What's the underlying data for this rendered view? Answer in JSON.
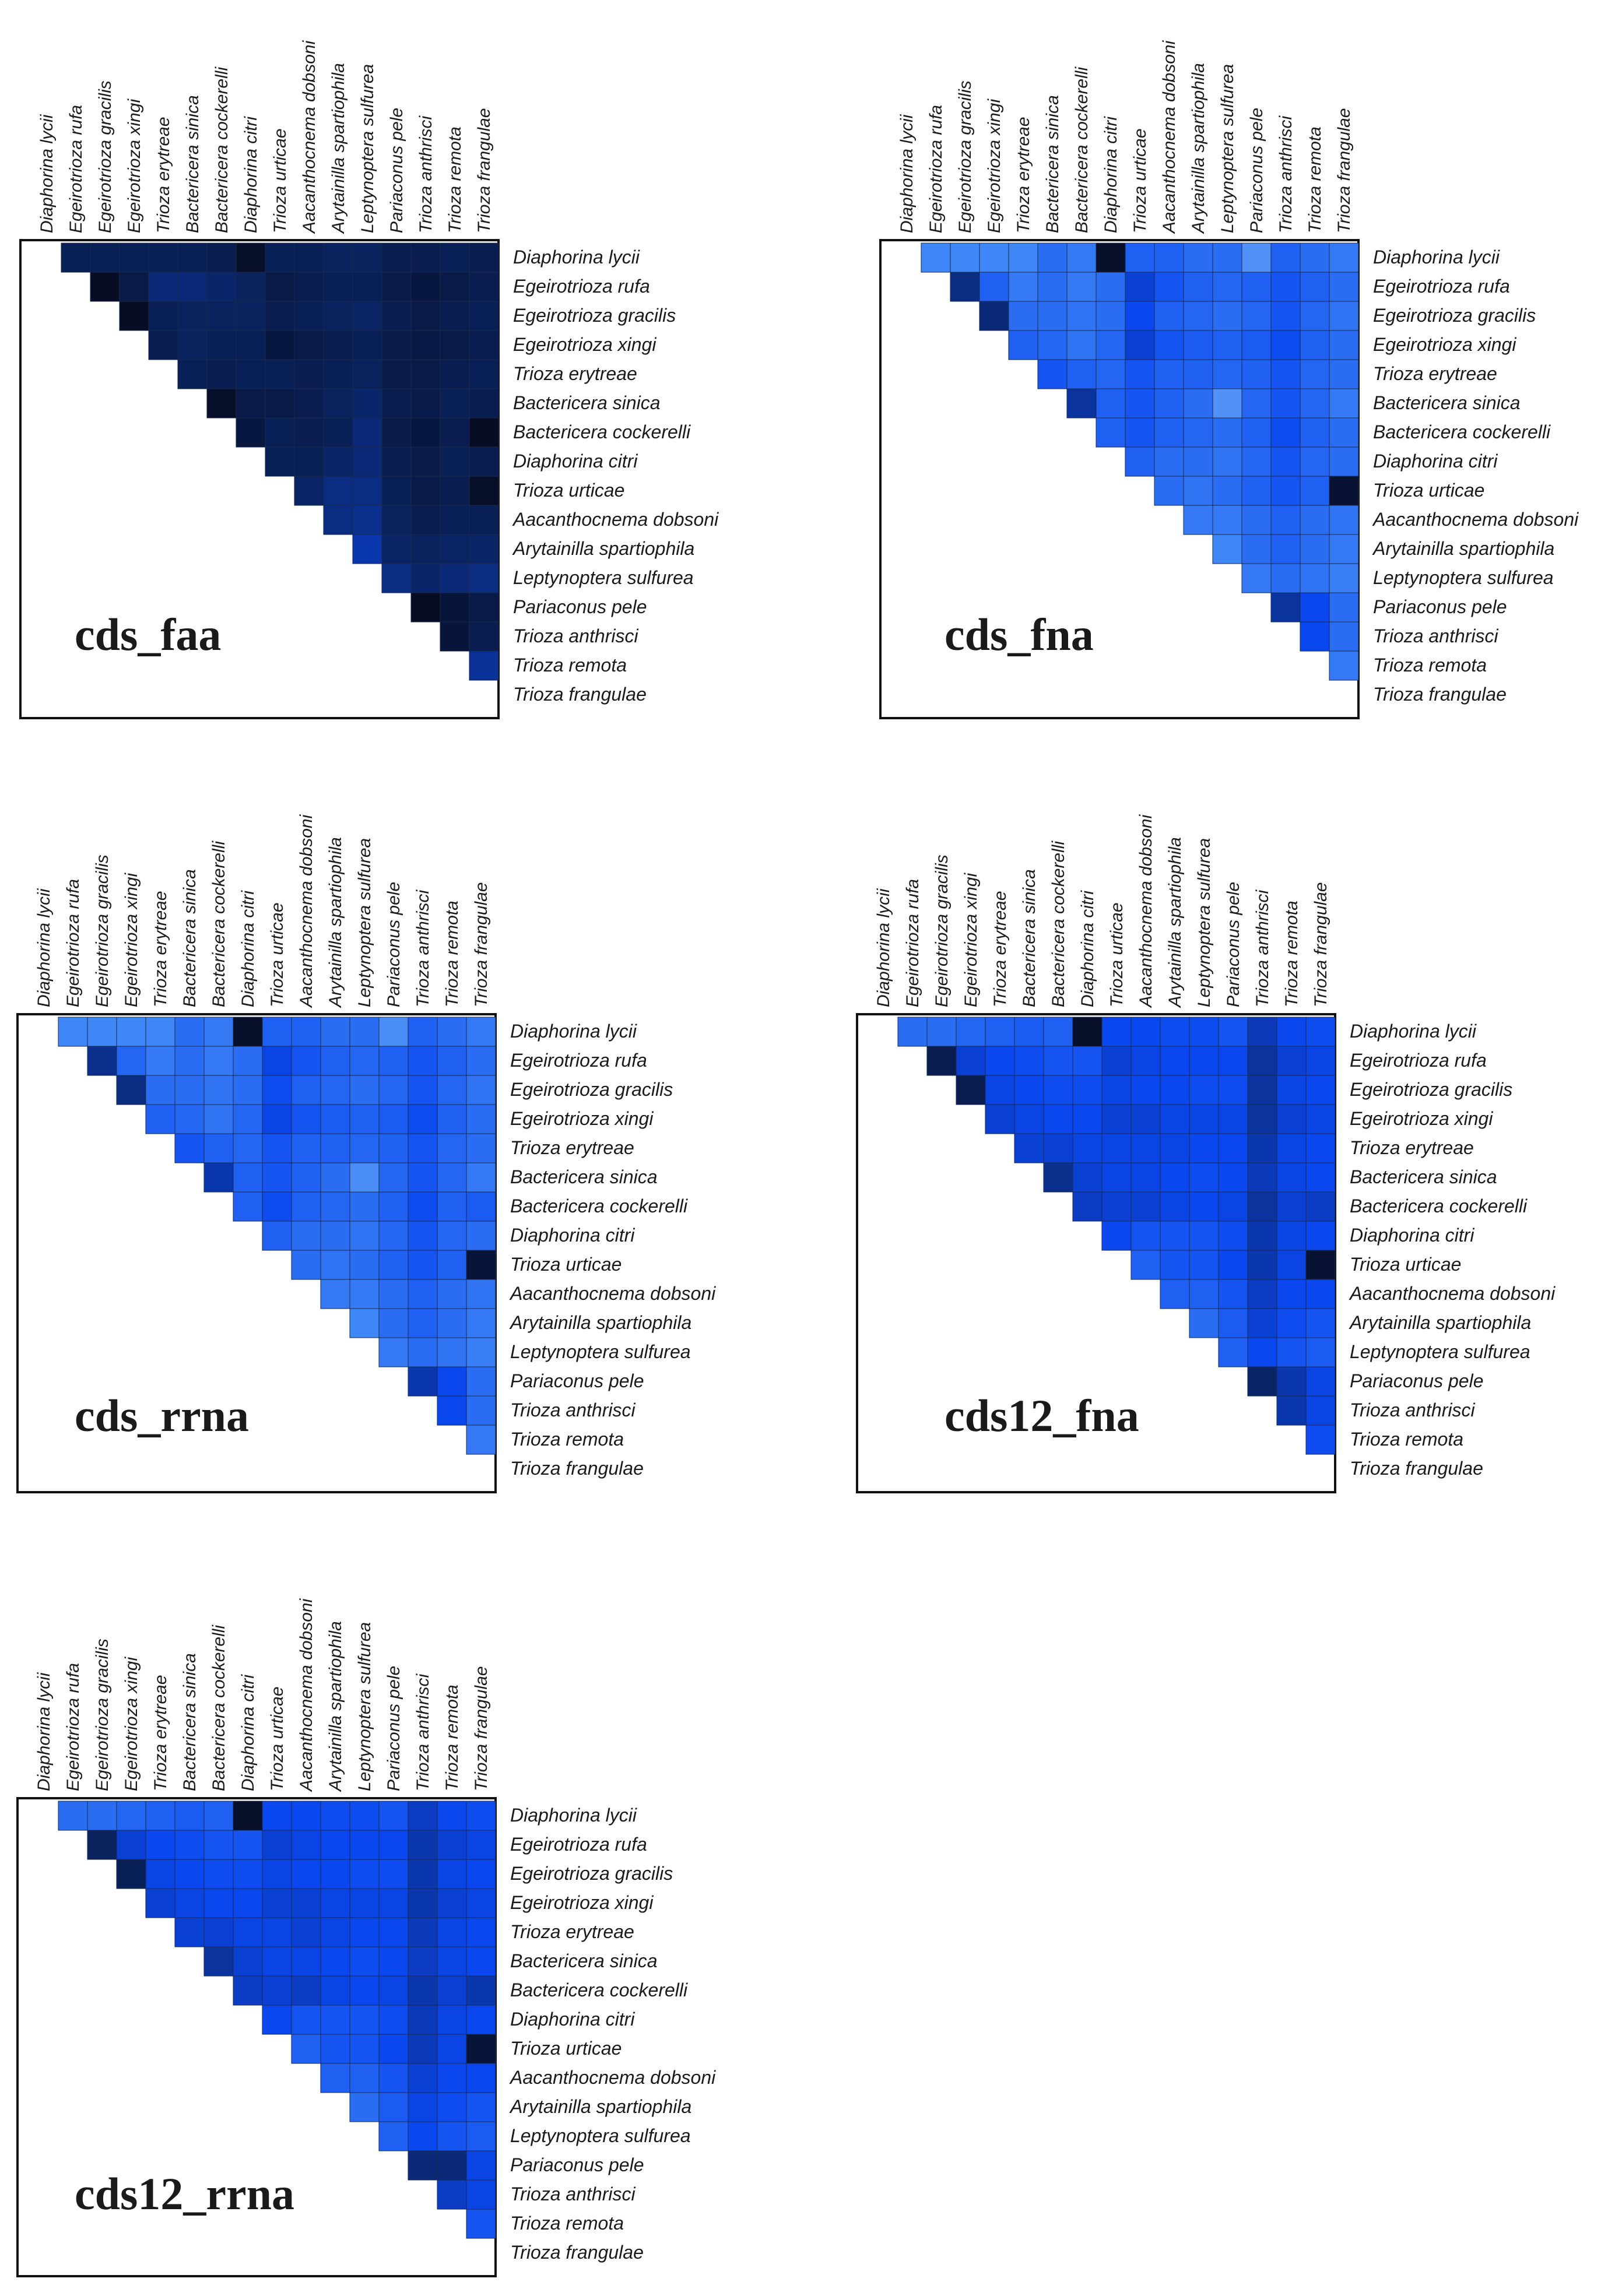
{
  "species": [
    "Diaphorina lycii",
    "Egeirotrioza rufa",
    "Egeirotrioza gracilis",
    "Egeirotrioza xingi",
    "Trioza erytreae",
    "Bactericera  sinica",
    "Bactericera cockerelli",
    "Diaphorina citri",
    "Trioza urticae",
    "Aacanthocnema dobsoni",
    "Arytainilla spartiophila",
    "Leptynoptera sulfurea",
    "Pariaconus pele",
    "Trioza anthrisci",
    "Trioza remota",
    "Trioza frangulae"
  ],
  "chart_data": [
    {
      "type": "heatmap",
      "title": "cds_faa",
      "scale": "0 = lightest blue, 1 = darkest navy",
      "palette": [
        "#9cc0fa",
        "#3f86f6",
        "#0b47ef",
        "#0a2566",
        "#070a1c"
      ],
      "values": [
        [],
        [
          0.8
        ],
        [
          0.8,
          0.97
        ],
        [
          0.8,
          0.85,
          0.97
        ],
        [
          0.8,
          0.72,
          0.8,
          0.82
        ],
        [
          0.8,
          0.72,
          0.78,
          0.78,
          0.8
        ],
        [
          0.82,
          0.74,
          0.78,
          0.8,
          0.82,
          0.95
        ],
        [
          0.95,
          0.78,
          0.78,
          0.8,
          0.8,
          0.85,
          0.88
        ],
        [
          0.8,
          0.85,
          0.82,
          0.88,
          0.8,
          0.85,
          0.8,
          0.8
        ],
        [
          0.8,
          0.82,
          0.8,
          0.85,
          0.82,
          0.82,
          0.82,
          0.8,
          0.75
        ],
        [
          0.78,
          0.8,
          0.78,
          0.82,
          0.8,
          0.78,
          0.8,
          0.75,
          0.7,
          0.7
        ],
        [
          0.78,
          0.8,
          0.76,
          0.8,
          0.78,
          0.74,
          0.72,
          0.72,
          0.7,
          0.68,
          0.62
        ],
        [
          0.82,
          0.85,
          0.82,
          0.85,
          0.84,
          0.82,
          0.85,
          0.82,
          0.8,
          0.78,
          0.76,
          0.7
        ],
        [
          0.82,
          0.88,
          0.85,
          0.86,
          0.85,
          0.84,
          0.88,
          0.85,
          0.85,
          0.82,
          0.78,
          0.74,
          0.98
        ],
        [
          0.8,
          0.85,
          0.82,
          0.85,
          0.82,
          0.8,
          0.82,
          0.8,
          0.82,
          0.8,
          0.76,
          0.72,
          0.9,
          0.9
        ],
        [
          0.82,
          0.82,
          0.8,
          0.82,
          0.8,
          0.82,
          0.98,
          0.82,
          0.96,
          0.8,
          0.75,
          0.7,
          0.85,
          0.82,
          0.66
        ]
      ]
    },
    {
      "type": "heatmap",
      "title": "cds_fna",
      "scale": "0 = lightest blue, 1 = darkest navy",
      "palette": [
        "#9cc0fa",
        "#3f86f6",
        "#0b47ef",
        "#0a2566",
        "#070a1c"
      ],
      "values": [
        [],
        [
          0.25
        ],
        [
          0.25,
          0.7
        ],
        [
          0.25,
          0.4,
          0.72
        ],
        [
          0.25,
          0.3,
          0.35,
          0.4
        ],
        [
          0.35,
          0.35,
          0.35,
          0.38,
          0.45
        ],
        [
          0.3,
          0.3,
          0.32,
          0.32,
          0.4,
          0.65
        ],
        [
          0.95,
          0.35,
          0.35,
          0.38,
          0.38,
          0.4,
          0.4
        ],
        [
          0.4,
          0.55,
          0.5,
          0.55,
          0.45,
          0.45,
          0.45,
          0.4
        ],
        [
          0.4,
          0.45,
          0.4,
          0.45,
          0.4,
          0.4,
          0.4,
          0.35,
          0.35
        ],
        [
          0.35,
          0.4,
          0.38,
          0.42,
          0.4,
          0.35,
          0.38,
          0.35,
          0.32,
          0.3
        ],
        [
          0.35,
          0.38,
          0.35,
          0.4,
          0.38,
          0.2,
          0.35,
          0.32,
          0.35,
          0.3,
          0.25
        ],
        [
          0.2,
          0.4,
          0.38,
          0.42,
          0.4,
          0.38,
          0.4,
          0.38,
          0.4,
          0.35,
          0.35,
          0.3
        ],
        [
          0.4,
          0.45,
          0.45,
          0.48,
          0.45,
          0.45,
          0.48,
          0.45,
          0.45,
          0.4,
          0.4,
          0.35,
          0.65
        ],
        [
          0.35,
          0.4,
          0.38,
          0.4,
          0.38,
          0.38,
          0.4,
          0.38,
          0.4,
          0.35,
          0.35,
          0.32,
          0.5,
          0.5
        ],
        [
          0.3,
          0.35,
          0.32,
          0.35,
          0.35,
          0.3,
          0.35,
          0.35,
          0.92,
          0.32,
          0.3,
          0.28,
          0.35,
          0.35,
          0.3
        ]
      ]
    },
    {
      "type": "heatmap",
      "title": "cds_rrna",
      "scale": "0 = lightest blue, 1 = darkest navy",
      "palette": [
        "#9cc0fa",
        "#3f86f6",
        "#0b47ef",
        "#0a2566",
        "#070a1c"
      ],
      "values": [
        [],
        [
          0.25
        ],
        [
          0.25,
          0.68
        ],
        [
          0.25,
          0.38,
          0.7
        ],
        [
          0.25,
          0.3,
          0.35,
          0.4
        ],
        [
          0.35,
          0.35,
          0.35,
          0.38,
          0.45
        ],
        [
          0.3,
          0.3,
          0.32,
          0.32,
          0.4,
          0.62
        ],
        [
          0.95,
          0.35,
          0.35,
          0.38,
          0.38,
          0.4,
          0.4
        ],
        [
          0.4,
          0.52,
          0.48,
          0.52,
          0.45,
          0.45,
          0.48,
          0.4
        ],
        [
          0.4,
          0.45,
          0.4,
          0.45,
          0.4,
          0.4,
          0.4,
          0.35,
          0.35
        ],
        [
          0.35,
          0.4,
          0.38,
          0.42,
          0.4,
          0.35,
          0.38,
          0.35,
          0.32,
          0.3
        ],
        [
          0.35,
          0.38,
          0.35,
          0.4,
          0.38,
          0.22,
          0.35,
          0.32,
          0.35,
          0.3,
          0.25
        ],
        [
          0.22,
          0.4,
          0.38,
          0.42,
          0.4,
          0.38,
          0.4,
          0.38,
          0.4,
          0.35,
          0.35,
          0.3
        ],
        [
          0.4,
          0.45,
          0.45,
          0.48,
          0.45,
          0.45,
          0.48,
          0.45,
          0.45,
          0.4,
          0.4,
          0.35,
          0.62
        ],
        [
          0.35,
          0.4,
          0.38,
          0.4,
          0.38,
          0.38,
          0.4,
          0.38,
          0.4,
          0.35,
          0.35,
          0.32,
          0.5,
          0.5
        ],
        [
          0.3,
          0.35,
          0.32,
          0.35,
          0.35,
          0.3,
          0.42,
          0.35,
          0.9,
          0.32,
          0.3,
          0.28,
          0.35,
          0.35,
          0.3
        ]
      ]
    },
    {
      "type": "heatmap",
      "title": "cds12_fna",
      "scale": "0 = lightest blue, 1 = darkest navy",
      "palette": [
        "#9cc0fa",
        "#3f86f6",
        "#0b47ef",
        "#0a2566",
        "#070a1c"
      ],
      "values": [
        [],
        [
          0.35
        ],
        [
          0.35,
          0.82
        ],
        [
          0.38,
          0.55,
          0.82
        ],
        [
          0.4,
          0.5,
          0.52,
          0.55
        ],
        [
          0.42,
          0.48,
          0.5,
          0.52,
          0.55
        ],
        [
          0.4,
          0.45,
          0.48,
          0.5,
          0.55,
          0.68
        ],
        [
          0.95,
          0.45,
          0.48,
          0.5,
          0.52,
          0.55,
          0.58
        ],
        [
          0.5,
          0.55,
          0.52,
          0.55,
          0.52,
          0.52,
          0.55,
          0.5
        ],
        [
          0.5,
          0.52,
          0.5,
          0.55,
          0.52,
          0.52,
          0.55,
          0.45,
          0.4
        ],
        [
          0.48,
          0.5,
          0.5,
          0.52,
          0.52,
          0.5,
          0.52,
          0.45,
          0.45,
          0.4
        ],
        [
          0.48,
          0.5,
          0.48,
          0.52,
          0.5,
          0.48,
          0.5,
          0.45,
          0.45,
          0.4,
          0.35
        ],
        [
          0.45,
          0.5,
          0.48,
          0.52,
          0.5,
          0.5,
          0.52,
          0.48,
          0.5,
          0.45,
          0.42,
          0.4
        ],
        [
          0.6,
          0.65,
          0.65,
          0.65,
          0.62,
          0.6,
          0.65,
          0.62,
          0.62,
          0.58,
          0.55,
          0.5,
          0.75
        ],
        [
          0.5,
          0.55,
          0.52,
          0.55,
          0.52,
          0.52,
          0.55,
          0.52,
          0.52,
          0.5,
          0.48,
          0.45,
          0.62,
          0.62
        ],
        [
          0.48,
          0.52,
          0.5,
          0.52,
          0.5,
          0.5,
          0.58,
          0.5,
          0.92,
          0.5,
          0.45,
          0.42,
          0.52,
          0.52,
          0.48
        ]
      ]
    },
    {
      "type": "heatmap",
      "title": "cds12_rrna",
      "scale": "0 = lightest blue, 1 = darkest navy",
      "palette": [
        "#9cc0fa",
        "#3f86f6",
        "#0b47ef",
        "#0a2566",
        "#070a1c"
      ],
      "values": [
        [],
        [
          0.35
        ],
        [
          0.35,
          0.78
        ],
        [
          0.38,
          0.55,
          0.8
        ],
        [
          0.4,
          0.5,
          0.52,
          0.55
        ],
        [
          0.42,
          0.48,
          0.5,
          0.52,
          0.55
        ],
        [
          0.4,
          0.45,
          0.48,
          0.5,
          0.55,
          0.65
        ],
        [
          0.95,
          0.45,
          0.48,
          0.5,
          0.52,
          0.55,
          0.58
        ],
        [
          0.5,
          0.55,
          0.52,
          0.55,
          0.52,
          0.52,
          0.55,
          0.5
        ],
        [
          0.5,
          0.52,
          0.5,
          0.55,
          0.55,
          0.52,
          0.58,
          0.45,
          0.4
        ],
        [
          0.48,
          0.5,
          0.5,
          0.52,
          0.52,
          0.5,
          0.52,
          0.45,
          0.45,
          0.4
        ],
        [
          0.48,
          0.5,
          0.48,
          0.52,
          0.5,
          0.48,
          0.5,
          0.45,
          0.45,
          0.4,
          0.35
        ],
        [
          0.45,
          0.5,
          0.48,
          0.52,
          0.5,
          0.5,
          0.52,
          0.48,
          0.5,
          0.45,
          0.42,
          0.4
        ],
        [
          0.58,
          0.62,
          0.62,
          0.62,
          0.6,
          0.58,
          0.62,
          0.6,
          0.6,
          0.55,
          0.52,
          0.5,
          0.72
        ],
        [
          0.5,
          0.55,
          0.52,
          0.55,
          0.52,
          0.52,
          0.55,
          0.52,
          0.52,
          0.5,
          0.48,
          0.45,
          0.72,
          0.58
        ],
        [
          0.48,
          0.52,
          0.5,
          0.52,
          0.5,
          0.5,
          0.62,
          0.5,
          0.9,
          0.5,
          0.45,
          0.42,
          0.52,
          0.52,
          0.45
        ]
      ]
    }
  ]
}
